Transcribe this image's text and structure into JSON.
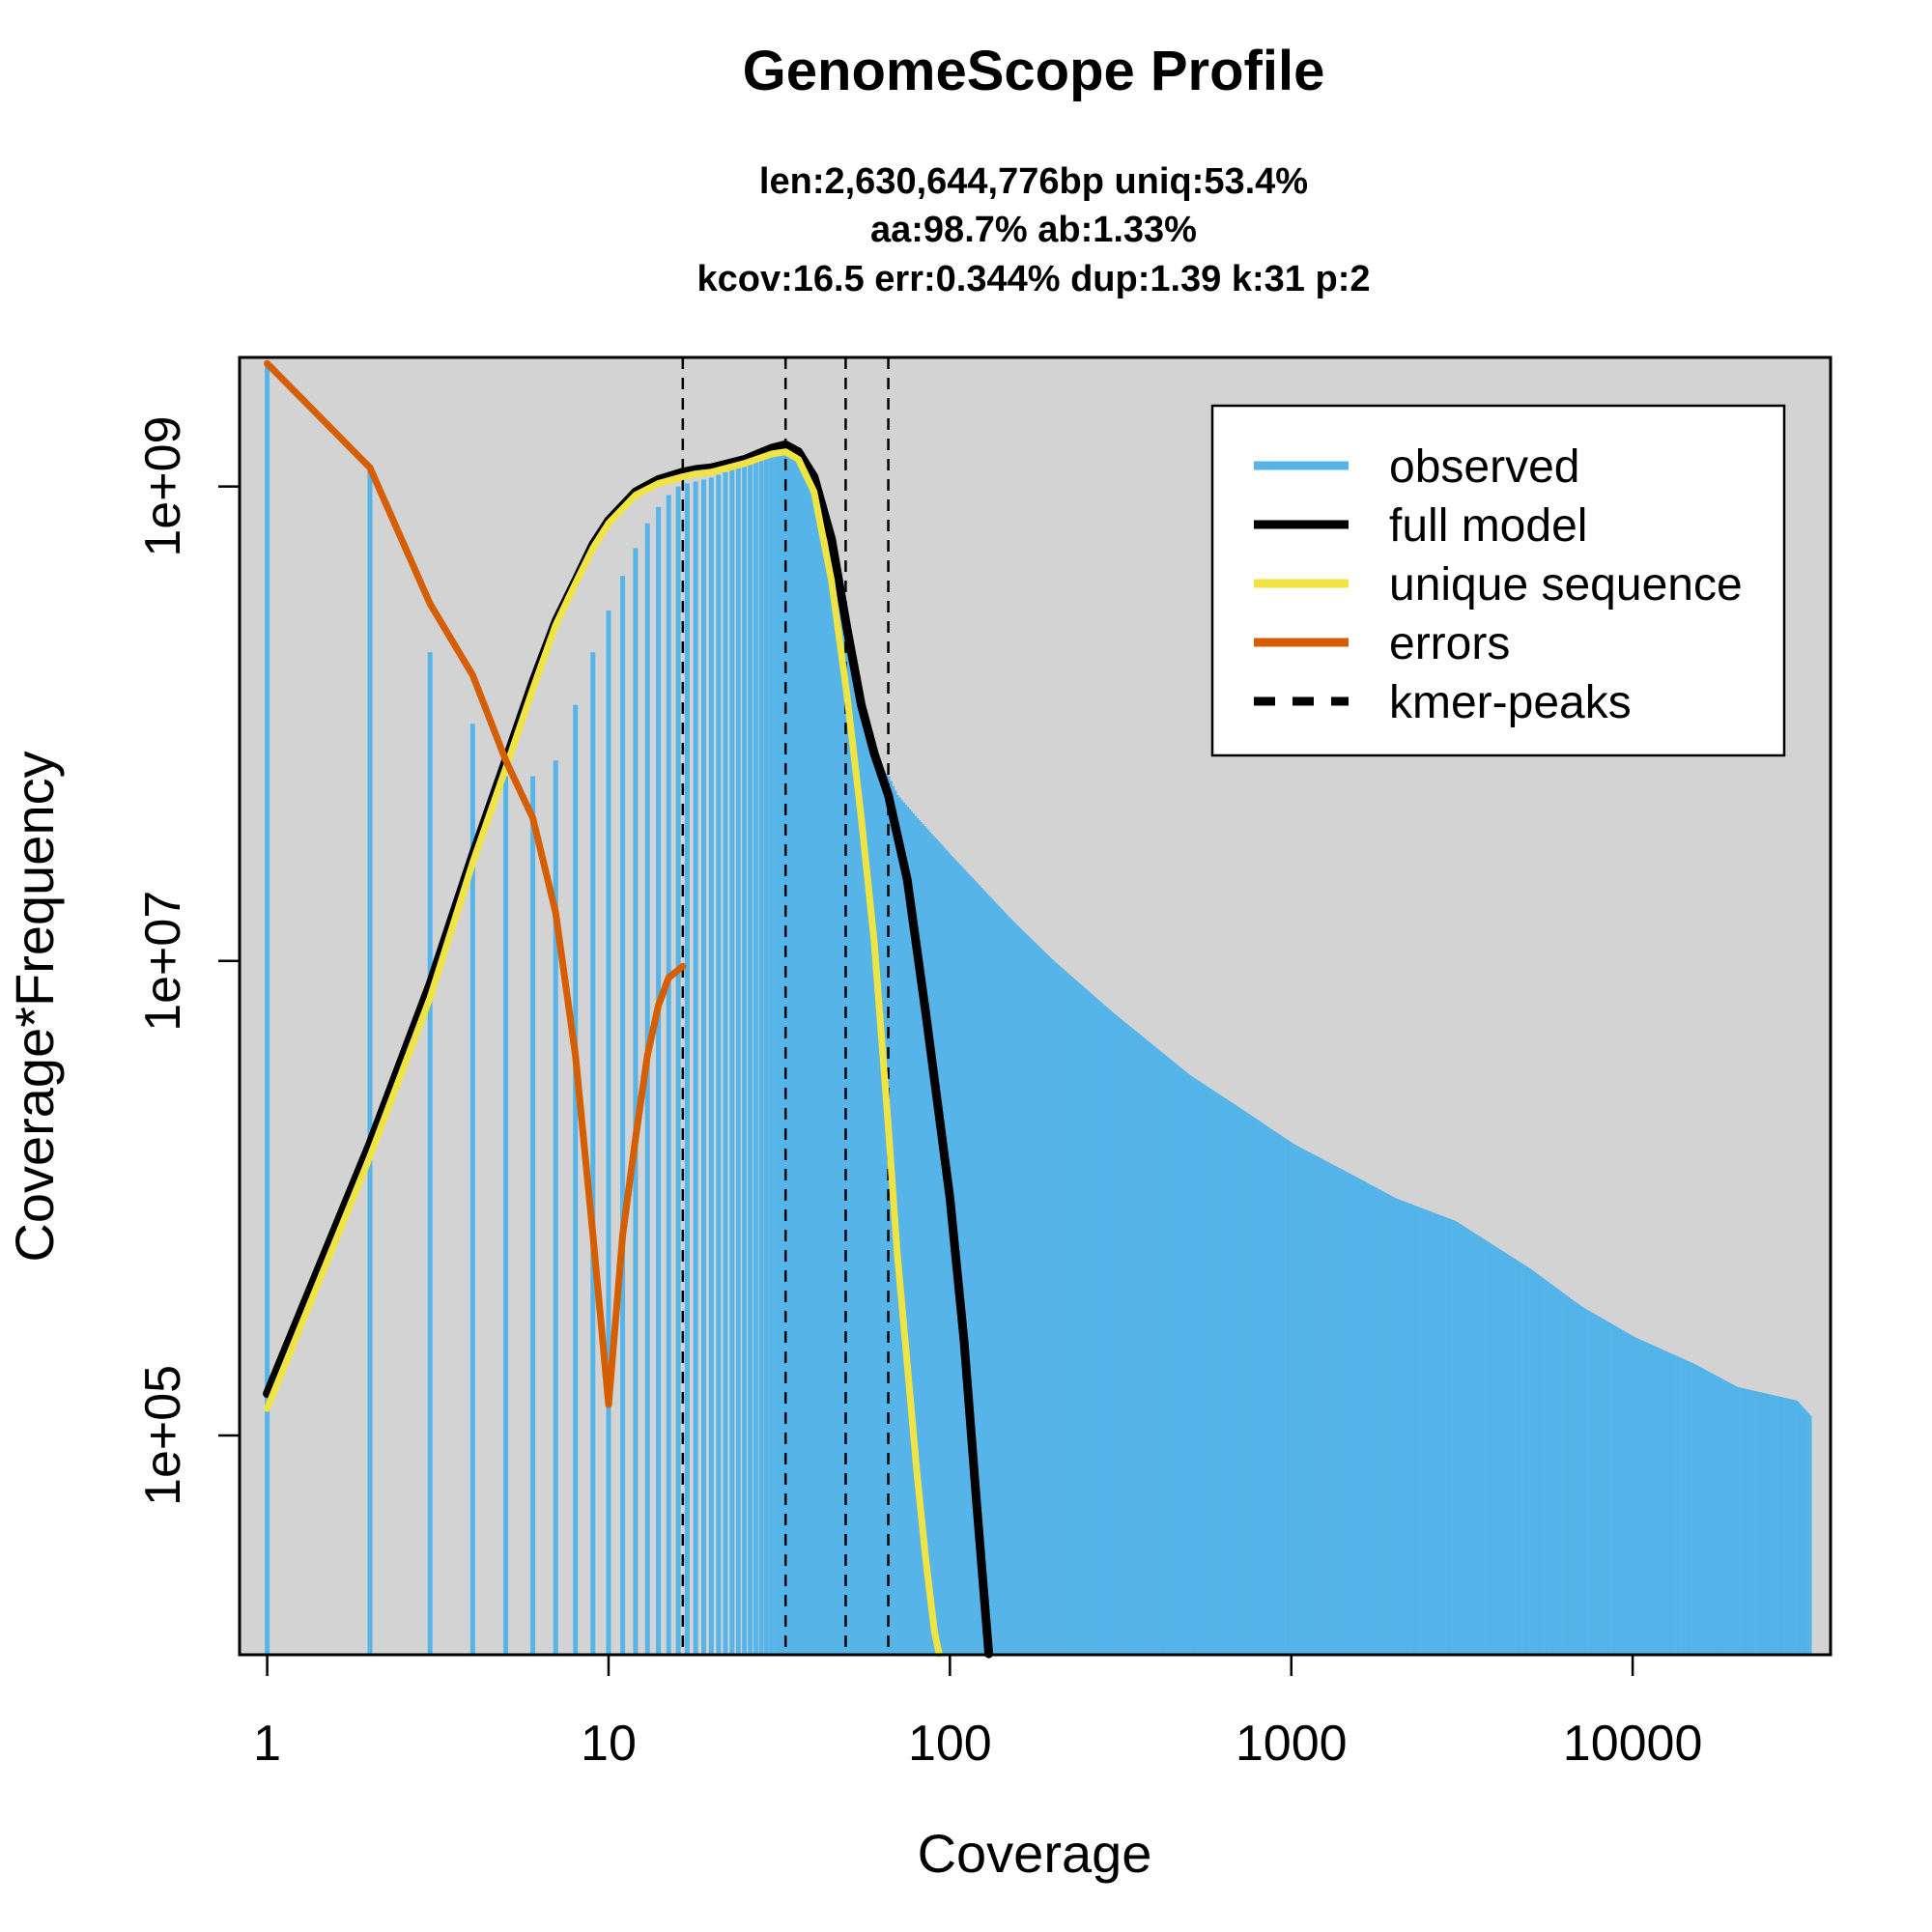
{
  "chart_data": {
    "type": "line",
    "title": "GenomeScope Profile",
    "subtitle_lines": [
      "len:2,630,644,776bp uniq:53.4%",
      "aa:98.7% ab:1.33%",
      "kcov:16.5 err:0.344%  dup:1.39  k:31 p:2"
    ],
    "xlabel": "Coverage",
    "ylabel": "Coverage*Frequency",
    "x_scale": "log",
    "y_scale": "log",
    "xlim": [
      0.83,
      38000
    ],
    "ylim": [
      11900,
      3500000000.0
    ],
    "x_ticks": [
      {
        "value": 1,
        "label": "1"
      },
      {
        "value": 10,
        "label": "10"
      },
      {
        "value": 100,
        "label": "100"
      },
      {
        "value": 1000,
        "label": "1000"
      },
      {
        "value": 10000,
        "label": "10000"
      }
    ],
    "y_ticks": [
      {
        "value": 100000,
        "label": "1e+05"
      },
      {
        "value": 10000000,
        "label": "1e+07"
      },
      {
        "value": 1000000000,
        "label": "1e+09"
      }
    ],
    "background": "#d3d3d3",
    "grid": false,
    "legend_position": "top-right",
    "legend": [
      {
        "label": "observed",
        "color": "#56b4e9",
        "style": "solid"
      },
      {
        "label": "full model",
        "color": "#000000",
        "style": "solid"
      },
      {
        "label": "unique sequence",
        "color": "#f0e442",
        "style": "solid"
      },
      {
        "label": "errors",
        "color": "#d55e00",
        "style": "solid"
      },
      {
        "label": "kmer-peaks",
        "color": "#000000",
        "style": "dashed"
      }
    ],
    "kmer_peaks": [
      16.5,
      33,
      49.5,
      66
    ],
    "series": [
      {
        "name": "observed",
        "color": "#56b4e9",
        "render": "histogram",
        "x": [
          1,
          2,
          3,
          4,
          5,
          6,
          7,
          8,
          9,
          10,
          11,
          12,
          13,
          14,
          15,
          16,
          17,
          18,
          19,
          20,
          22,
          25,
          28,
          30,
          33,
          36,
          40,
          45,
          50,
          55,
          60,
          66,
          70,
          80,
          100,
          150,
          200,
          300,
          500,
          700,
          1000,
          1500,
          2000,
          3000,
          5000,
          7000,
          10000,
          15000,
          20000,
          30000,
          33000
        ],
        "values": [
          3200000000.0,
          1200000000.0,
          200000000.0,
          100000000.0,
          60000000.0,
          60000000.0,
          70000000.0,
          120000000.0,
          200000000.0,
          300000000.0,
          420000000.0,
          550000000.0,
          700000000.0,
          820000000.0,
          920000000.0,
          1000000000.0,
          1030000000.0,
          1050000000.0,
          1070000000.0,
          1090000000.0,
          1150000000.0,
          1220000000.0,
          1300000000.0,
          1350000000.0,
          1400000000.0,
          1300000000.0,
          900000000.0,
          450000000.0,
          220000000.0,
          110000000.0,
          70000000.0,
          60000000.0,
          50000000.0,
          40000000.0,
          28000000.0,
          15000000.0,
          10000000.0,
          6000000.0,
          3300000.0,
          2400000.0,
          1700000.0,
          1250000.0,
          1000000.0,
          800000.0,
          500000.0,
          350000.0,
          260000.0,
          200000.0,
          160000.0,
          140000.0,
          120000.0
        ]
      },
      {
        "name": "full model",
        "color": "#000000",
        "render": "line",
        "x": [
          1,
          2,
          3,
          4,
          5,
          6,
          7,
          8,
          9,
          10,
          12,
          14,
          16.5,
          18,
          20,
          25,
          30,
          33,
          36,
          40,
          45,
          50,
          55,
          60,
          66,
          75,
          85,
          100,
          110,
          120,
          130
        ],
        "values": [
          150000.0,
          1700000.0,
          8000000.0,
          28000000.0,
          70000000.0,
          150000000.0,
          270000000.0,
          400000000.0,
          570000000.0,
          720000000.0,
          950000000.0,
          1070000000.0,
          1150000000.0,
          1180000000.0,
          1200000000.0,
          1300000000.0,
          1450000000.0,
          1500000000.0,
          1400000000.0,
          1100000000.0,
          600000000.0,
          250000000.0,
          120000000.0,
          75000000.0,
          50000000.0,
          22000000.0,
          6000000.0,
          1000000.0,
          250000.0,
          50000.0,
          12000.0
        ]
      },
      {
        "name": "unique sequence",
        "color": "#f0e442",
        "render": "line",
        "x": [
          1,
          2,
          3,
          4,
          5,
          6,
          7,
          8,
          9,
          10,
          12,
          14,
          16.5,
          18,
          20,
          25,
          30,
          33,
          36,
          40,
          45,
          50,
          55,
          60,
          66,
          70,
          75,
          80,
          85,
          90,
          93
        ],
        "values": [
          130000.0,
          1500000.0,
          7000000.0,
          26000000.0,
          65000000.0,
          140000000.0,
          260000000.0,
          390000000.0,
          550000000.0,
          700000000.0,
          920000000.0,
          1030000000.0,
          1100000000.0,
          1130000000.0,
          1150000000.0,
          1250000000.0,
          1370000000.0,
          1400000000.0,
          1300000000.0,
          950000000.0,
          400000000.0,
          130000000.0,
          40000000.0,
          12000000.0,
          2000000.0,
          600000.0,
          200000.0,
          70000.0,
          30000.0,
          15000.0,
          12000.0
        ]
      },
      {
        "name": "errors",
        "color": "#d55e00",
        "render": "line",
        "x": [
          1,
          2,
          3,
          4,
          5,
          6,
          7,
          8,
          9,
          10,
          11,
          12,
          13,
          14,
          15,
          16.5
        ],
        "values": [
          3300000000.0,
          1200000000.0,
          320000000.0,
          160000000.0,
          70000000.0,
          40000000.0,
          16000000.0,
          4000000.0,
          700000.0,
          135000.0,
          700000.0,
          1800000.0,
          4000000.0,
          6500000.0,
          8500000.0,
          9500000.0
        ]
      }
    ]
  }
}
